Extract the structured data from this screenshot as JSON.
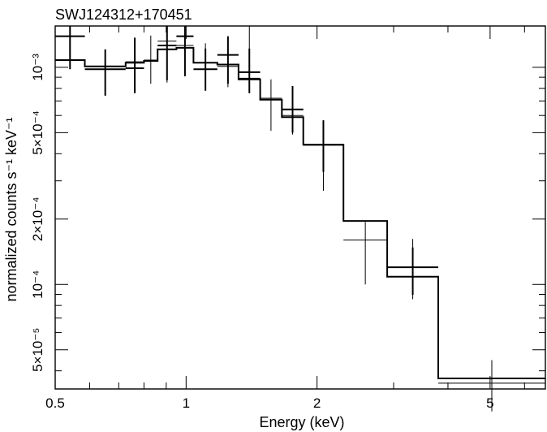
{
  "chart_data": {
    "type": "line",
    "title": "SWJ124312+170451",
    "xlabel": "Energy (keV)",
    "ylabel": "normalized counts s⁻¹ keV⁻¹",
    "x_scale": "log",
    "y_scale": "log",
    "xlim": [
      0.5,
      6.7
    ],
    "ylim": [
      3.3e-05,
      0.00155
    ],
    "x_ticks": [
      {
        "value": 0.5,
        "label": "0.5"
      },
      {
        "value": 1,
        "label": "1"
      },
      {
        "value": 2,
        "label": "2"
      },
      {
        "value": 5,
        "label": "5"
      }
    ],
    "y_ticks": [
      {
        "value": 0.001,
        "label": "10⁻³"
      },
      {
        "value": 0.0005,
        "label": "5×10⁻⁴"
      },
      {
        "value": 0.0002,
        "label": "2×10⁻⁴"
      },
      {
        "value": 0.0001,
        "label": "10⁻⁴"
      },
      {
        "value": 5e-05,
        "label": "5×10⁻⁵"
      }
    ],
    "grid": false,
    "series": [
      {
        "style": "thick",
        "data": [
          {
            "x_lo": 0.5,
            "x_hi": 0.585,
            "y": 0.00139,
            "y_lo": 0.00098,
            "y_hi": 0.00155
          },
          {
            "x_lo": 0.585,
            "x_hi": 0.726,
            "y": 0.00098,
            "y_lo": 0.00074,
            "y_hi": 0.00121
          },
          {
            "x_lo": 0.726,
            "x_hi": 0.8,
            "y": 0.00099,
            "y_lo": 0.00076,
            "y_hi": 0.00137
          },
          {
            "x_lo": 0.86,
            "x_hi": 0.95,
            "y": 0.00126,
            "y_lo": 0.00087,
            "y_hi": 0.0016
          },
          {
            "x_lo": 0.95,
            "x_hi": 1.04,
            "y": 0.00139,
            "y_lo": 0.00091,
            "y_hi": 0.0017
          },
          {
            "x_lo": 1.04,
            "x_hi": 1.18,
            "y": 0.00098,
            "y_lo": 0.00078,
            "y_hi": 0.00122
          },
          {
            "x_lo": 1.18,
            "x_hi": 1.32,
            "y": 0.00114,
            "y_lo": 0.00084,
            "y_hi": 0.00139
          },
          {
            "x_lo": 1.32,
            "x_hi": 1.48,
            "y": 0.00095,
            "y_lo": 0.00076,
            "y_hi": 0.00122
          },
          {
            "x_lo": 1.66,
            "x_hi": 1.86,
            "y": 0.00064,
            "y_lo": 0.0005,
            "y_hi": 0.00082
          },
          {
            "x_lo": 1.86,
            "x_hi": 2.3,
            "y": 0.00044,
            "y_lo": 0.00033,
            "y_hi": 0.00057
          },
          {
            "x_lo": 2.9,
            "x_hi": 3.8,
            "y": 0.00012,
            "y_lo": 8.95e-05,
            "y_hi": 0.000148
          }
        ]
      },
      {
        "style": "thin",
        "data": [
          {
            "x_lo": 0.5,
            "x_hi": 0.585,
            "y": 0.00108
          },
          {
            "x_lo": 0.585,
            "x_hi": 0.726,
            "y": 0.00101
          },
          {
            "x_lo": 0.726,
            "x_hi": 0.8,
            "y": 0.00106,
            "y_lo": 0.00084,
            "y_hi": 0.0013
          },
          {
            "x_lo": 0.8,
            "x_hi": 0.86,
            "y": 0.00108,
            "y_lo": 0.00084,
            "y_hi": 0.0014
          },
          {
            "x_lo": 0.86,
            "x_hi": 0.95,
            "y": 0.00132,
            "y_lo": 0.00085,
            "y_hi": 0.0017
          },
          {
            "x_lo": 0.95,
            "x_hi": 1.04,
            "y": 0.00126,
            "y_lo": 0.00091,
            "y_hi": 0.00155
          },
          {
            "x_lo": 1.04,
            "x_hi": 1.18,
            "y": 0.00105,
            "y_lo": 0.00082,
            "y_hi": 0.00129
          },
          {
            "x_lo": 1.18,
            "x_hi": 1.32,
            "y": 0.00101,
            "y_lo": 0.00081,
            "y_hi": 0.00122
          },
          {
            "x_lo": 1.32,
            "x_hi": 1.48,
            "y": 0.00089,
            "y_lo": 0.00079,
            "y_hi": 0.00155
          },
          {
            "x_lo": 1.48,
            "x_hi": 1.66,
            "y": 0.00072,
            "y_lo": 0.00051,
            "y_hi": 0.00088
          },
          {
            "x_lo": 1.66,
            "x_hi": 1.86,
            "y": 0.0006,
            "y_lo": 0.00049,
            "y_hi": 0.00072
          },
          {
            "x_lo": 1.86,
            "x_hi": 2.3,
            "y": 0.00044,
            "y_lo": 0.00027,
            "y_hi": 0.00057
          },
          {
            "x_lo": 2.3,
            "x_hi": 2.9,
            "y": 0.00016,
            "y_lo": 0.0001,
            "y_hi": 0.000194
          },
          {
            "x_lo": 2.9,
            "x_hi": 3.8,
            "y": 0.0001085,
            "y_lo": 8.55e-05,
            "y_hi": 0.000162
          },
          {
            "x_lo": 3.8,
            "x_hi": 6.7,
            "y": 3.51e-05,
            "y_lo": 2.6e-05,
            "y_hi": 4.48e-05
          }
        ]
      }
    ],
    "model": {
      "steps": [
        {
          "x_lo": 0.5,
          "x_hi": 0.585,
          "y": 0.00108
        },
        {
          "x_lo": 0.585,
          "x_hi": 0.726,
          "y": 0.00101
        },
        {
          "x_lo": 0.726,
          "x_hi": 0.8,
          "y": 0.00105
        },
        {
          "x_lo": 0.8,
          "x_hi": 0.86,
          "y": 0.00107
        },
        {
          "x_lo": 0.86,
          "x_hi": 0.95,
          "y": 0.00121
        },
        {
          "x_lo": 0.95,
          "x_hi": 1.04,
          "y": 0.00123
        },
        {
          "x_lo": 1.04,
          "x_hi": 1.18,
          "y": 0.00105
        },
        {
          "x_lo": 1.18,
          "x_hi": 1.32,
          "y": 0.00103
        },
        {
          "x_lo": 1.32,
          "x_hi": 1.48,
          "y": 0.00088
        },
        {
          "x_lo": 1.48,
          "x_hi": 1.66,
          "y": 0.00071
        },
        {
          "x_lo": 1.66,
          "x_hi": 1.86,
          "y": 0.00059
        },
        {
          "x_lo": 1.86,
          "x_hi": 2.3,
          "y": 0.00044
        },
        {
          "x_lo": 2.3,
          "x_hi": 2.9,
          "y": 0.000196
        },
        {
          "x_lo": 2.9,
          "x_hi": 3.8,
          "y": 0.0001085
        },
        {
          "x_lo": 3.8,
          "x_hi": 6.7,
          "y": 3.69e-05
        }
      ]
    }
  }
}
